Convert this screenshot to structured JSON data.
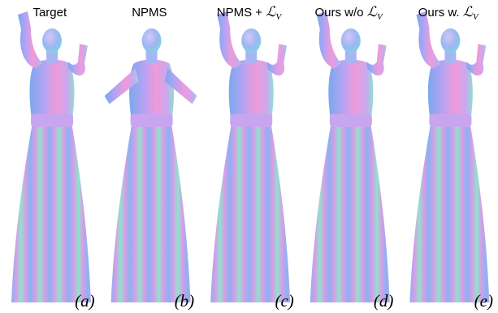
{
  "panels": [
    {
      "title": "Target",
      "label": "(a)"
    },
    {
      "title": "NPMS",
      "label": "(b)"
    },
    {
      "title": "NPMS + ",
      "loss": "ℒ",
      "loss_sub": "V",
      "label": "(c)"
    },
    {
      "title": "Ours w/o ",
      "loss": "ℒ",
      "loss_sub": "V",
      "label": "(d)"
    },
    {
      "title": "Ours w. ",
      "loss": "ℒ",
      "loss_sub": "V",
      "label": "(e)"
    }
  ]
}
